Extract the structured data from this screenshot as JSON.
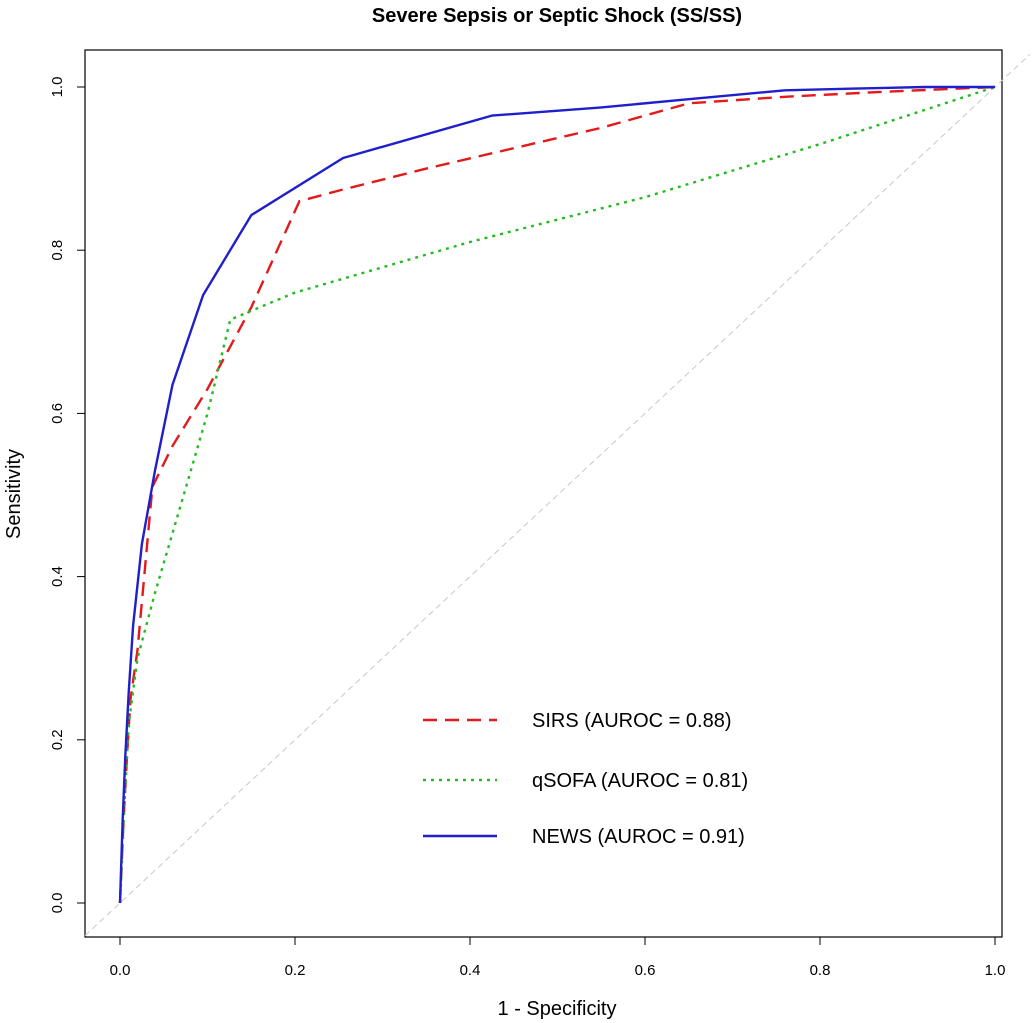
{
  "chart_data": {
    "type": "line",
    "title": "Severe Sepsis or Septic Shock (SS/SS)",
    "xlabel": "1 - Specificity",
    "ylabel": "Sensitivity",
    "xlim": [
      0,
      1
    ],
    "ylim": [
      0,
      1
    ],
    "x_ticks": [
      "0.0",
      "0.2",
      "0.4",
      "0.6",
      "0.8",
      "1.0"
    ],
    "y_ticks": [
      "0.0",
      "0.2",
      "0.4",
      "0.6",
      "0.8",
      "1.0"
    ],
    "grid": false,
    "legend_position": "bottom-right",
    "reference_line": {
      "x": [
        0,
        1
      ],
      "y": [
        0,
        1
      ],
      "color": "#c8c8c8",
      "style": "dashed"
    },
    "series": [
      {
        "name": "SIRS (AUROC = 0.88)",
        "color": "#e31a1c",
        "style": "dashed",
        "x": [
          0,
          0.004,
          0.008,
          0.012,
          0.02,
          0.037,
          0.06,
          0.1,
          0.15,
          0.205,
          0.25,
          0.35,
          0.45,
          0.55,
          0.65,
          0.76,
          0.87,
          1.0
        ],
        "y": [
          0,
          0.1,
          0.18,
          0.25,
          0.31,
          0.51,
          0.56,
          0.63,
          0.73,
          0.86,
          0.873,
          0.9,
          0.925,
          0.95,
          0.98,
          0.988,
          0.994,
          1.0
        ]
      },
      {
        "name": "qSOFA (AUROC = 0.81)",
        "color": "#22bb22",
        "style": "dotted",
        "x": [
          0,
          0.005,
          0.01,
          0.02,
          0.04,
          0.07,
          0.1,
          0.126,
          0.2,
          0.4,
          0.6,
          0.8,
          1.0
        ],
        "y": [
          0,
          0.12,
          0.22,
          0.3,
          0.38,
          0.49,
          0.6,
          0.715,
          0.748,
          0.81,
          0.865,
          0.93,
          1.0
        ]
      },
      {
        "name": "NEWS (AUROC = 0.91)",
        "color": "#1f1fcc",
        "style": "solid",
        "x": [
          0,
          0.003,
          0.006,
          0.01,
          0.015,
          0.025,
          0.04,
          0.06,
          0.095,
          0.15,
          0.255,
          0.425,
          0.55,
          0.65,
          0.76,
          0.84,
          0.92,
          1.0
        ],
        "y": [
          0,
          0.1,
          0.18,
          0.26,
          0.34,
          0.44,
          0.53,
          0.635,
          0.745,
          0.843,
          0.913,
          0.965,
          0.975,
          0.985,
          0.996,
          0.998,
          1.0,
          1.0
        ]
      }
    ]
  }
}
